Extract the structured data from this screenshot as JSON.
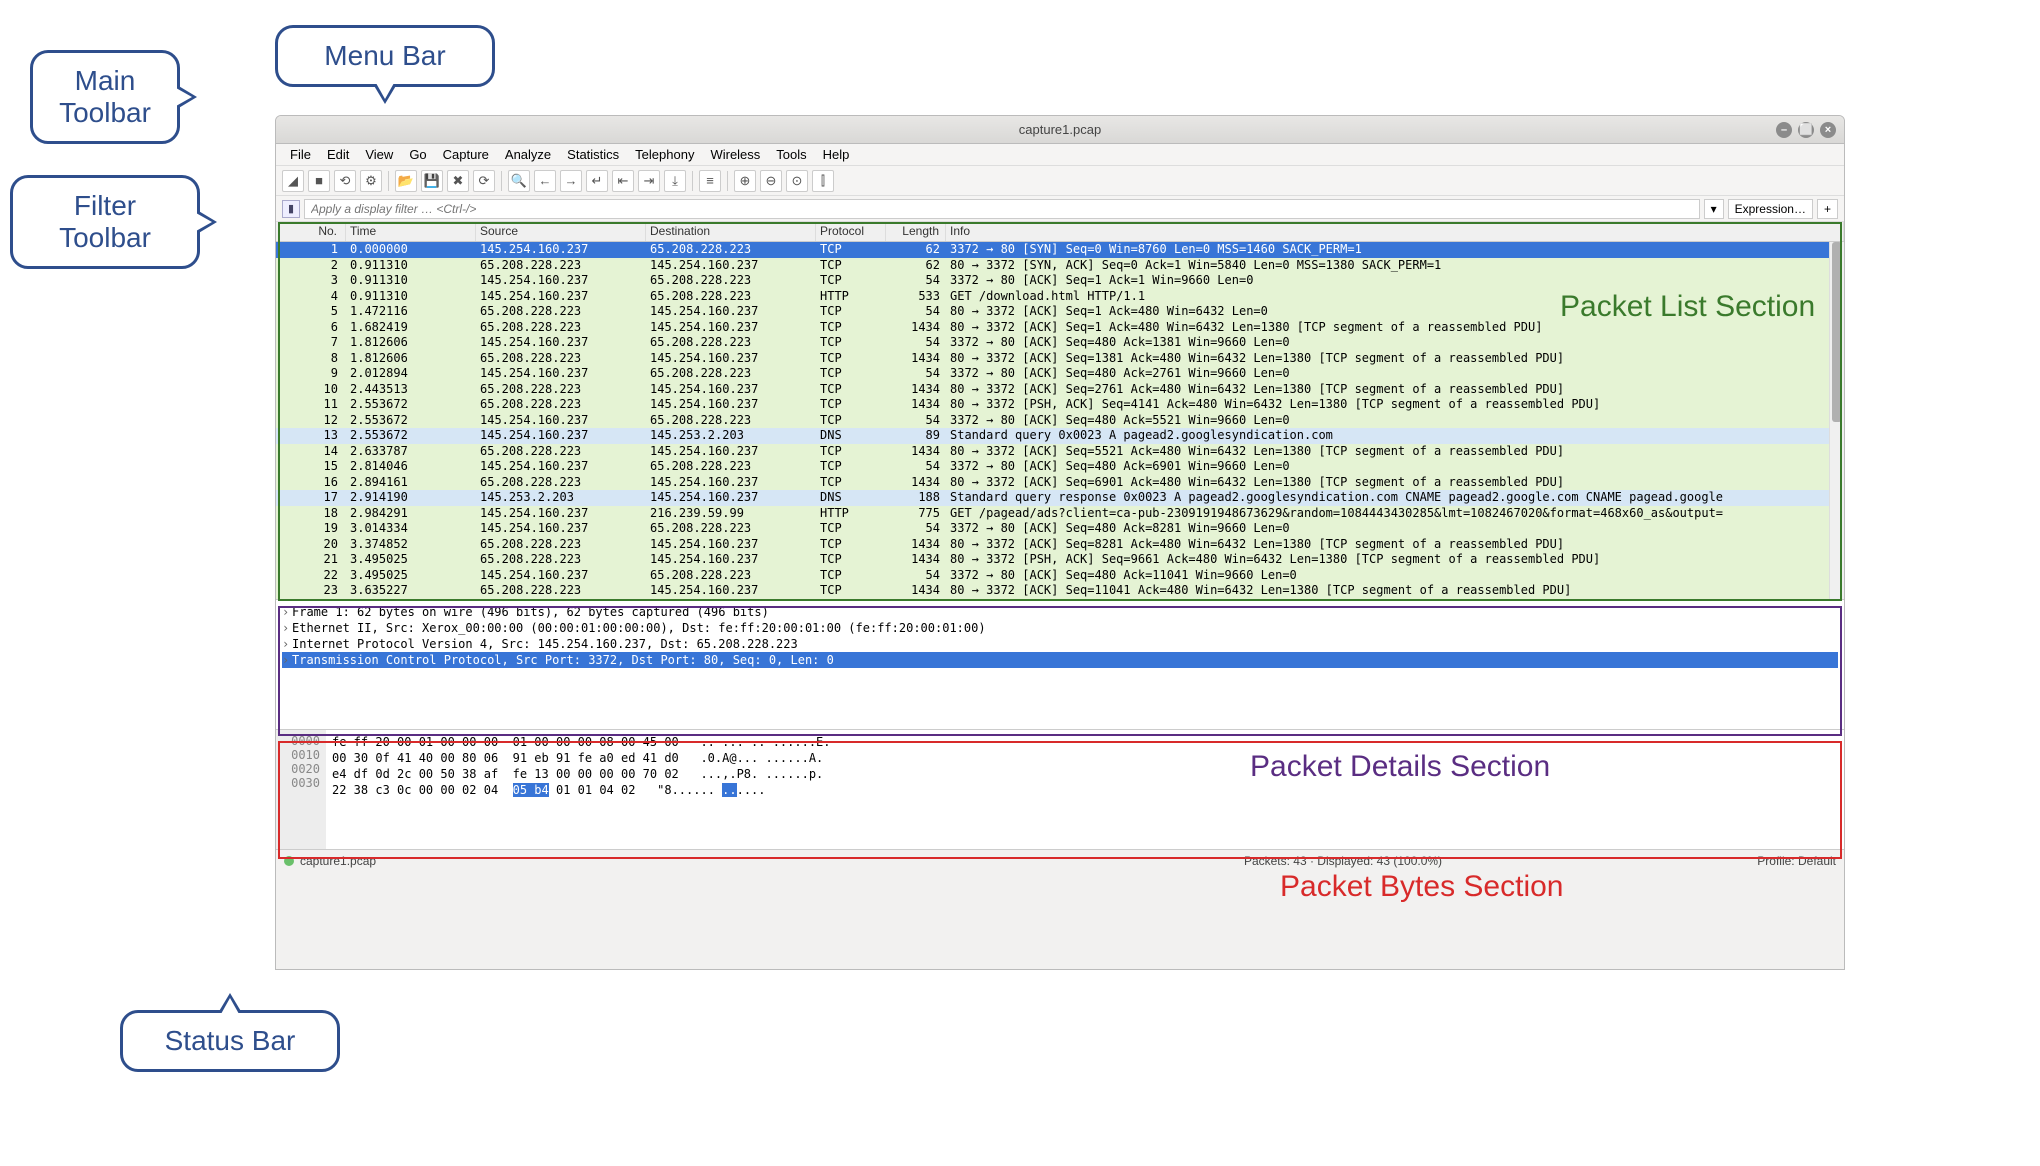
{
  "callouts": {
    "main_toolbar": "Main\nToolbar",
    "menu_bar": "Menu Bar",
    "filter_toolbar": "Filter\nToolbar",
    "status_bar": "Status Bar"
  },
  "section_labels": {
    "packet_list": "Packet List Section",
    "packet_details": "Packet Details Section",
    "packet_bytes": "Packet Bytes Section"
  },
  "window_title": "capture1.pcap",
  "menu_items": [
    "File",
    "Edit",
    "View",
    "Go",
    "Capture",
    "Analyze",
    "Statistics",
    "Telephony",
    "Wireless",
    "Tools",
    "Help"
  ],
  "filter_placeholder": "Apply a display filter … <Ctrl-/>",
  "expression_button": "Expression…",
  "packet_columns": [
    "No.",
    "Time",
    "Source",
    "Destination",
    "Protocol",
    "Length",
    "Info"
  ],
  "packets": [
    {
      "no": "1",
      "time": "0.000000",
      "src": "145.254.160.237",
      "dst": "65.208.228.223",
      "proto": "TCP",
      "len": "62",
      "info": "3372 → 80 [SYN] Seq=0 Win=8760 Len=0 MSS=1460 SACK_PERM=1",
      "style": "sel"
    },
    {
      "no": "2",
      "time": "0.911310",
      "src": "65.208.228.223",
      "dst": "145.254.160.237",
      "proto": "TCP",
      "len": "62",
      "info": "80 → 3372 [SYN, ACK] Seq=0 Ack=1 Win=5840 Len=0 MSS=1380 SACK_PERM=1",
      "style": ""
    },
    {
      "no": "3",
      "time": "0.911310",
      "src": "145.254.160.237",
      "dst": "65.208.228.223",
      "proto": "TCP",
      "len": "54",
      "info": "3372 → 80 [ACK] Seq=1 Ack=1 Win=9660 Len=0",
      "style": ""
    },
    {
      "no": "4",
      "time": "0.911310",
      "src": "145.254.160.237",
      "dst": "65.208.228.223",
      "proto": "HTTP",
      "len": "533",
      "info": "GET /download.html HTTP/1.1",
      "style": ""
    },
    {
      "no": "5",
      "time": "1.472116",
      "src": "65.208.228.223",
      "dst": "145.254.160.237",
      "proto": "TCP",
      "len": "54",
      "info": "80 → 3372 [ACK] Seq=1 Ack=480 Win=6432 Len=0",
      "style": ""
    },
    {
      "no": "6",
      "time": "1.682419",
      "src": "65.208.228.223",
      "dst": "145.254.160.237",
      "proto": "TCP",
      "len": "1434",
      "info": "80 → 3372 [ACK] Seq=1 Ack=480 Win=6432 Len=1380 [TCP segment of a reassembled PDU]",
      "style": ""
    },
    {
      "no": "7",
      "time": "1.812606",
      "src": "145.254.160.237",
      "dst": "65.208.228.223",
      "proto": "TCP",
      "len": "54",
      "info": "3372 → 80 [ACK] Seq=480 Ack=1381 Win=9660 Len=0",
      "style": ""
    },
    {
      "no": "8",
      "time": "1.812606",
      "src": "65.208.228.223",
      "dst": "145.254.160.237",
      "proto": "TCP",
      "len": "1434",
      "info": "80 → 3372 [ACK] Seq=1381 Ack=480 Win=6432 Len=1380 [TCP segment of a reassembled PDU]",
      "style": ""
    },
    {
      "no": "9",
      "time": "2.012894",
      "src": "145.254.160.237",
      "dst": "65.208.228.223",
      "proto": "TCP",
      "len": "54",
      "info": "3372 → 80 [ACK] Seq=480 Ack=2761 Win=9660 Len=0",
      "style": ""
    },
    {
      "no": "10",
      "time": "2.443513",
      "src": "65.208.228.223",
      "dst": "145.254.160.237",
      "proto": "TCP",
      "len": "1434",
      "info": "80 → 3372 [ACK] Seq=2761 Ack=480 Win=6432 Len=1380 [TCP segment of a reassembled PDU]",
      "style": ""
    },
    {
      "no": "11",
      "time": "2.553672",
      "src": "65.208.228.223",
      "dst": "145.254.160.237",
      "proto": "TCP",
      "len": "1434",
      "info": "80 → 3372 [PSH, ACK] Seq=4141 Ack=480 Win=6432 Len=1380 [TCP segment of a reassembled PDU]",
      "style": ""
    },
    {
      "no": "12",
      "time": "2.553672",
      "src": "145.254.160.237",
      "dst": "65.208.228.223",
      "proto": "TCP",
      "len": "54",
      "info": "3372 → 80 [ACK] Seq=480 Ack=5521 Win=9660 Len=0",
      "style": ""
    },
    {
      "no": "13",
      "time": "2.553672",
      "src": "145.254.160.237",
      "dst": "145.253.2.203",
      "proto": "DNS",
      "len": "89",
      "info": "Standard query 0x0023 A pagead2.googlesyndication.com",
      "style": "dns"
    },
    {
      "no": "14",
      "time": "2.633787",
      "src": "65.208.228.223",
      "dst": "145.254.160.237",
      "proto": "TCP",
      "len": "1434",
      "info": "80 → 3372 [ACK] Seq=5521 Ack=480 Win=6432 Len=1380 [TCP segment of a reassembled PDU]",
      "style": ""
    },
    {
      "no": "15",
      "time": "2.814046",
      "src": "145.254.160.237",
      "dst": "65.208.228.223",
      "proto": "TCP",
      "len": "54",
      "info": "3372 → 80 [ACK] Seq=480 Ack=6901 Win=9660 Len=0",
      "style": ""
    },
    {
      "no": "16",
      "time": "2.894161",
      "src": "65.208.228.223",
      "dst": "145.254.160.237",
      "proto": "TCP",
      "len": "1434",
      "info": "80 → 3372 [ACK] Seq=6901 Ack=480 Win=6432 Len=1380 [TCP segment of a reassembled PDU]",
      "style": ""
    },
    {
      "no": "17",
      "time": "2.914190",
      "src": "145.253.2.203",
      "dst": "145.254.160.237",
      "proto": "DNS",
      "len": "188",
      "info": "Standard query response 0x0023 A pagead2.googlesyndication.com CNAME pagead2.google.com CNAME pagead.google",
      "style": "dns"
    },
    {
      "no": "18",
      "time": "2.984291",
      "src": "145.254.160.237",
      "dst": "216.239.59.99",
      "proto": "HTTP",
      "len": "775",
      "info": "GET /pagead/ads?client=ca-pub-2309191948673629&random=1084443430285&lmt=1082467020&format=468x60_as&output=",
      "style": ""
    },
    {
      "no": "19",
      "time": "3.014334",
      "src": "145.254.160.237",
      "dst": "65.208.228.223",
      "proto": "TCP",
      "len": "54",
      "info": "3372 → 80 [ACK] Seq=480 Ack=8281 Win=9660 Len=0",
      "style": ""
    },
    {
      "no": "20",
      "time": "3.374852",
      "src": "65.208.228.223",
      "dst": "145.254.160.237",
      "proto": "TCP",
      "len": "1434",
      "info": "80 → 3372 [ACK] Seq=8281 Ack=480 Win=6432 Len=1380 [TCP segment of a reassembled PDU]",
      "style": ""
    },
    {
      "no": "21",
      "time": "3.495025",
      "src": "65.208.228.223",
      "dst": "145.254.160.237",
      "proto": "TCP",
      "len": "1434",
      "info": "80 → 3372 [PSH, ACK] Seq=9661 Ack=480 Win=6432 Len=1380 [TCP segment of a reassembled PDU]",
      "style": ""
    },
    {
      "no": "22",
      "time": "3.495025",
      "src": "145.254.160.237",
      "dst": "65.208.228.223",
      "proto": "TCP",
      "len": "54",
      "info": "3372 → 80 [ACK] Seq=480 Ack=11041 Win=9660 Len=0",
      "style": ""
    },
    {
      "no": "23",
      "time": "3.635227",
      "src": "65.208.228.223",
      "dst": "145.254.160.237",
      "proto": "TCP",
      "len": "1434",
      "info": "80 → 3372 [ACK] Seq=11041 Ack=480 Win=6432 Len=1380 [TCP segment of a reassembled PDU]",
      "style": ""
    }
  ],
  "details": [
    {
      "text": "Frame 1: 62 bytes on wire (496 bits), 62 bytes captured (496 bits)",
      "sel": false
    },
    {
      "text": "Ethernet II, Src: Xerox_00:00:00 (00:00:01:00:00:00), Dst: fe:ff:20:00:01:00 (fe:ff:20:00:01:00)",
      "sel": false
    },
    {
      "text": "Internet Protocol Version 4, Src: 145.254.160.237, Dst: 65.208.228.223",
      "sel": false
    },
    {
      "text": "Transmission Control Protocol, Src Port: 3372, Dst Port: 80, Seq: 0, Len: 0",
      "sel": true
    }
  ],
  "bytes": {
    "offsets": [
      "0000",
      "0010",
      "0020",
      "0030"
    ],
    "hex_lines": [
      "fe ff 20 00 01 00 00 00  01 00 00 00 08 00 45 00",
      "00 30 0f 41 40 00 80 06  91 eb 91 fe a0 ed 41 d0",
      "e4 df 0d 2c 00 50 38 af  fe 13 00 00 00 00 70 02",
      "22 38 c3 0c 00 00 02 04  |05 b4| 01 01 04 02"
    ],
    "ascii_lines": [
      ".. ... .. ......E.",
      ".0.A@... ......A.",
      "...,.P8. ......p.",
      "\"8...... |..|...."
    ]
  },
  "statusbar": {
    "filename": "capture1.pcap",
    "packets": "Packets: 43 · Displayed: 43 (100.0%)",
    "profile": "Profile: Default"
  },
  "colors": {
    "callout_border": "#2e4e8c",
    "list_outline": "#3a7a2c",
    "details_outline": "#5a2d82",
    "bytes_outline": "#d82a2a",
    "row_green": "#e5f3d4",
    "row_sel": "#3875d7",
    "row_dns": "#d6e6f5"
  }
}
